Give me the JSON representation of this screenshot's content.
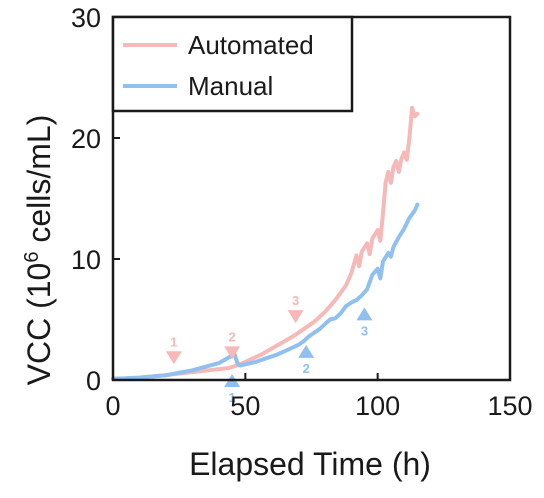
{
  "chart_data": {
    "type": "line",
    "title": "",
    "xlabel": "Elapsed Time (h)",
    "ylabel_parts": [
      "VCC (10",
      "6",
      " cells/mL)"
    ],
    "xlim": [
      0,
      150
    ],
    "ylim": [
      0,
      30
    ],
    "x_ticks": [
      0,
      50,
      100,
      150
    ],
    "y_ticks": [
      0,
      10,
      20,
      30
    ],
    "grid": false,
    "legend_position": "top-left",
    "series": [
      {
        "name": "Automated",
        "color": "#f7b8b8",
        "points": [
          [
            0,
            0.1
          ],
          [
            5,
            0.1
          ],
          [
            10,
            0.2
          ],
          [
            15,
            0.3
          ],
          [
            20,
            0.4
          ],
          [
            24,
            0.5
          ],
          [
            28,
            0.6
          ],
          [
            32,
            0.7
          ],
          [
            36,
            0.8
          ],
          [
            40,
            0.9
          ],
          [
            44,
            1.0
          ],
          [
            48,
            1.3
          ],
          [
            52,
            1.7
          ],
          [
            56,
            2.1
          ],
          [
            60,
            2.6
          ],
          [
            64,
            3.1
          ],
          [
            68,
            3.6
          ],
          [
            70,
            3.9
          ],
          [
            72,
            4.2
          ],
          [
            76,
            4.8
          ],
          [
            80,
            5.6
          ],
          [
            84,
            6.6
          ],
          [
            88,
            7.8
          ],
          [
            90,
            8.8
          ],
          [
            92,
            10.3
          ],
          [
            93,
            9.4
          ],
          [
            94,
            10.6
          ],
          [
            96,
            11.3
          ],
          [
            97,
            10.4
          ],
          [
            98,
            11.7
          ],
          [
            100,
            12.4
          ],
          [
            101,
            11.5
          ],
          [
            102,
            13.8
          ],
          [
            103,
            16.3
          ],
          [
            104,
            17.2
          ],
          [
            105,
            16.3
          ],
          [
            106,
            17.6
          ],
          [
            107,
            18.1
          ],
          [
            108,
            17.2
          ],
          [
            109,
            18.3
          ],
          [
            110,
            18.8
          ],
          [
            111,
            18.2
          ],
          [
            112,
            20.0
          ],
          [
            113,
            22.5
          ],
          [
            114,
            21.8
          ],
          [
            115,
            22.0
          ]
        ]
      },
      {
        "name": "Manual",
        "color": "#8fc0f0",
        "points": [
          [
            0,
            0.1
          ],
          [
            5,
            0.15
          ],
          [
            10,
            0.2
          ],
          [
            15,
            0.3
          ],
          [
            20,
            0.4
          ],
          [
            25,
            0.6
          ],
          [
            30,
            0.8
          ],
          [
            35,
            1.1
          ],
          [
            40,
            1.4
          ],
          [
            44,
            1.9
          ],
          [
            46,
            2.1
          ],
          [
            47,
            1.4
          ],
          [
            48,
            1.2
          ],
          [
            50,
            1.3
          ],
          [
            54,
            1.5
          ],
          [
            58,
            1.8
          ],
          [
            62,
            2.1
          ],
          [
            66,
            2.5
          ],
          [
            70,
            2.9
          ],
          [
            72,
            3.2
          ],
          [
            74,
            3.6
          ],
          [
            76,
            3.9
          ],
          [
            78,
            4.2
          ],
          [
            80,
            4.6
          ],
          [
            82,
            5.0
          ],
          [
            84,
            5.1
          ],
          [
            86,
            5.5
          ],
          [
            88,
            6.1
          ],
          [
            90,
            6.4
          ],
          [
            92,
            6.6
          ],
          [
            94,
            7.0
          ],
          [
            96,
            7.5
          ],
          [
            98,
            8.7
          ],
          [
            100,
            9.2
          ],
          [
            101,
            8.4
          ],
          [
            102,
            9.8
          ],
          [
            104,
            10.5
          ],
          [
            105,
            10.2
          ],
          [
            106,
            11.0
          ],
          [
            108,
            11.8
          ],
          [
            110,
            12.5
          ],
          [
            112,
            13.4
          ],
          [
            114,
            14.0
          ],
          [
            115,
            14.5
          ]
        ]
      }
    ],
    "markers": [
      {
        "series": "Automated",
        "label": "1",
        "x": 23,
        "y": 1.3,
        "direction": "down",
        "color": "#f7b8b8"
      },
      {
        "series": "Automated",
        "label": "2",
        "x": 45,
        "y": 1.7,
        "direction": "down",
        "color": "#f7b8b8"
      },
      {
        "series": "Automated",
        "label": "3",
        "x": 69,
        "y": 4.7,
        "direction": "down",
        "color": "#f7b8b8"
      },
      {
        "series": "Manual",
        "label": "1",
        "x": 45,
        "y": 0.5,
        "direction": "up",
        "color": "#8fc0f0"
      },
      {
        "series": "Manual",
        "label": "2",
        "x": 73,
        "y": 2.9,
        "direction": "up",
        "color": "#8fc0f0"
      },
      {
        "series": "Manual",
        "label": "3",
        "x": 95,
        "y": 6.0,
        "direction": "up",
        "color": "#8fc0f0"
      }
    ]
  }
}
